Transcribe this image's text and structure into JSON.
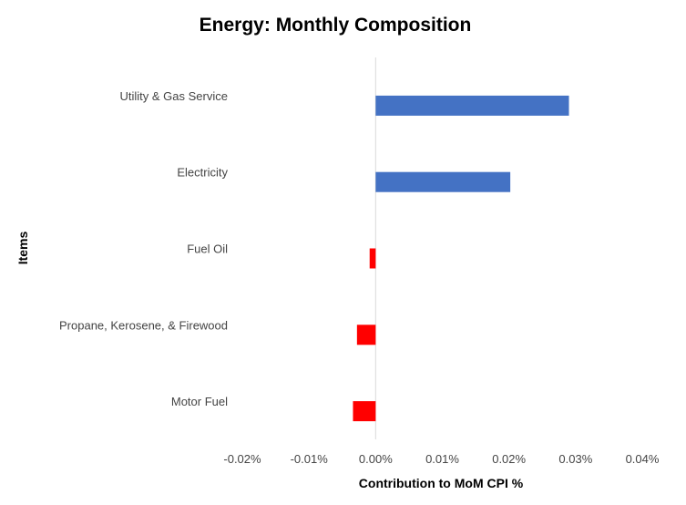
{
  "chart_data": {
    "type": "bar",
    "orientation": "horizontal",
    "title": "Energy: Monthly Composition",
    "xlabel": "Contribution to MoM CPI %",
    "ylabel": "Items",
    "xlim": [
      -0.02,
      0.04
    ],
    "xticks": [
      -0.02,
      -0.01,
      0.0,
      0.01,
      0.02,
      0.03,
      0.04
    ],
    "xtick_labels": [
      "-0.02%",
      "-0.01%",
      "0.00%",
      "0.01%",
      "0.02%",
      "0.03%",
      "0.04%"
    ],
    "categories": [
      "Utility & Gas Service",
      "Electricity",
      "Fuel Oil",
      "Propane, Kerosene, & Firewood",
      "Motor Fuel"
    ],
    "values": [
      0.029,
      0.0202,
      -0.0009,
      -0.0028,
      -0.0034
    ],
    "colors": {
      "positive": "#4472C4",
      "negative": "#FF0000"
    },
    "grid": false,
    "legend": "none"
  }
}
